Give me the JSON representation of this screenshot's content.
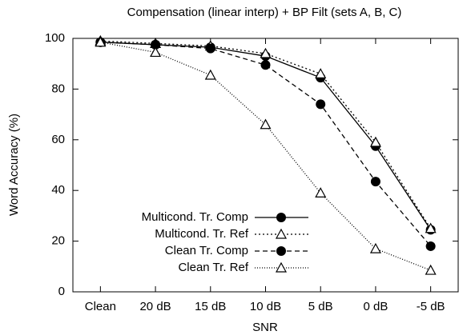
{
  "chart_data": {
    "type": "line",
    "title": "Compensation (linear interp) + BP Filt (sets A, B, C)",
    "x_label": "SNR",
    "y_label": "Word Accuracy (%)",
    "categories": [
      "Clean",
      "20 dB",
      "15 dB",
      "10 dB",
      "5 dB",
      "0 dB",
      "-5 dB"
    ],
    "ylim": [
      0,
      100
    ],
    "yticks": [
      0,
      20,
      40,
      60,
      80,
      100
    ],
    "grid": false,
    "legend": "bottom-left",
    "series": [
      {
        "name": "Multicond. Tr. Comp",
        "color": "#000000",
        "dash": "solid",
        "marker": "filled-circle",
        "values": [
          98.5,
          97.5,
          96.5,
          93,
          84.5,
          57.5,
          24.5
        ]
      },
      {
        "name": "Multicond. Tr. Ref",
        "color": "#000000",
        "dash": "dotted",
        "marker": "open-triangle",
        "values": [
          99,
          98,
          97,
          94,
          86,
          59,
          25
        ]
      },
      {
        "name": "Clean Tr. Comp",
        "color": "#000000",
        "dash": "dashed",
        "marker": "filled-circle",
        "values": [
          98.5,
          97.5,
          96,
          89.5,
          74,
          43.5,
          18
        ]
      },
      {
        "name": "Clean Tr. Ref",
        "color": "#000000",
        "dash": "fine-dotted",
        "marker": "open-triangle",
        "values": [
          98.5,
          94.5,
          85.5,
          66,
          39,
          17,
          8.5
        ]
      }
    ]
  }
}
